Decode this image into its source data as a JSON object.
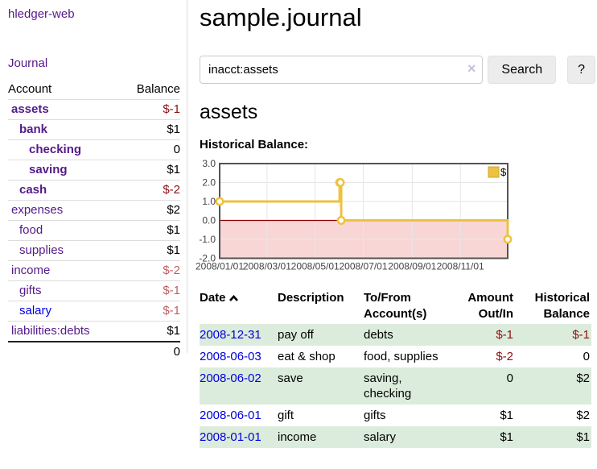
{
  "brand": "hledger-web",
  "nav": {
    "journal": "Journal"
  },
  "sidebar": {
    "header": {
      "account": "Account",
      "balance": "Balance"
    },
    "accounts": [
      {
        "name": "assets",
        "balance": "$-1"
      },
      {
        "name": "bank",
        "balance": "$1"
      },
      {
        "name": "checking",
        "balance": "0"
      },
      {
        "name": "saving",
        "balance": "$1"
      },
      {
        "name": "cash",
        "balance": "$-2"
      },
      {
        "name": "expenses",
        "balance": "$2"
      },
      {
        "name": "food",
        "balance": "$1"
      },
      {
        "name": "supplies",
        "balance": "$1"
      },
      {
        "name": "income",
        "balance": "$-2"
      },
      {
        "name": "gifts",
        "balance": "$-1"
      },
      {
        "name": "salary",
        "balance": "$-1"
      },
      {
        "name": "liabilities:debts",
        "balance": "$1"
      }
    ],
    "total": "0"
  },
  "header": {
    "title": "sample.journal"
  },
  "search": {
    "value": "inacct:assets",
    "clear": "×",
    "search_button": "Search",
    "help_button": "?"
  },
  "main": {
    "account_heading": "assets",
    "chart_title": "Historical Balance:"
  },
  "chart_data": {
    "type": "line",
    "style": "step",
    "title": "Historical Balance:",
    "series": [
      {
        "name": "$",
        "color": "#edc240",
        "points": [
          [
            "2008-01-01",
            1
          ],
          [
            "2008-06-01",
            2
          ],
          [
            "2008-06-02",
            2
          ],
          [
            "2008-06-03",
            0
          ],
          [
            "2008-12-31",
            -1
          ]
        ]
      }
    ],
    "xlim": [
      "2008-01-01",
      "2008-12-31"
    ],
    "ylim": [
      -2,
      3
    ],
    "x_ticks": [
      "2008/01/01",
      "2008/03/01",
      "2008/05/01",
      "2008/07/01",
      "2008/09/01",
      "2008/11/01"
    ],
    "y_ticks": [
      "3.0",
      "2.0",
      "1.0",
      "0.0",
      "-1.0",
      "-2.0"
    ],
    "legend": {
      "label": "$",
      "position": "top-right"
    },
    "grid": true,
    "negative_region_fill": "#f9d6d6",
    "zero_line_color": "#8b0000"
  },
  "register": {
    "columns": {
      "date": "Date",
      "description": "Description",
      "tofrom": "To/From Account(s)",
      "amount": "Amount Out/In",
      "balance": "Historical Balance"
    },
    "rows": [
      {
        "date": "2008-12-31",
        "description": "pay off",
        "accounts": "debts",
        "amount": "$-1",
        "balance": "$-1"
      },
      {
        "date": "2008-06-03",
        "description": "eat & shop",
        "accounts": "food, supplies",
        "amount": "$-2",
        "balance": "0"
      },
      {
        "date": "2008-06-02",
        "description": "save",
        "accounts": "saving, checking",
        "amount": "0",
        "balance": "$2"
      },
      {
        "date": "2008-06-01",
        "description": "gift",
        "accounts": "gifts",
        "amount": "$1",
        "balance": "$2"
      },
      {
        "date": "2008-01-01",
        "description": "income",
        "accounts": "salary",
        "amount": "$1",
        "balance": "$1"
      }
    ]
  },
  "colors": {
    "link_purple": "#551a8b",
    "link_blue": "#0000dd",
    "negative_strong": "#8e1010",
    "negative_soft": "#bf5f5f",
    "row_stripe_green": "#dcecdc",
    "series_gold": "#edc240"
  }
}
